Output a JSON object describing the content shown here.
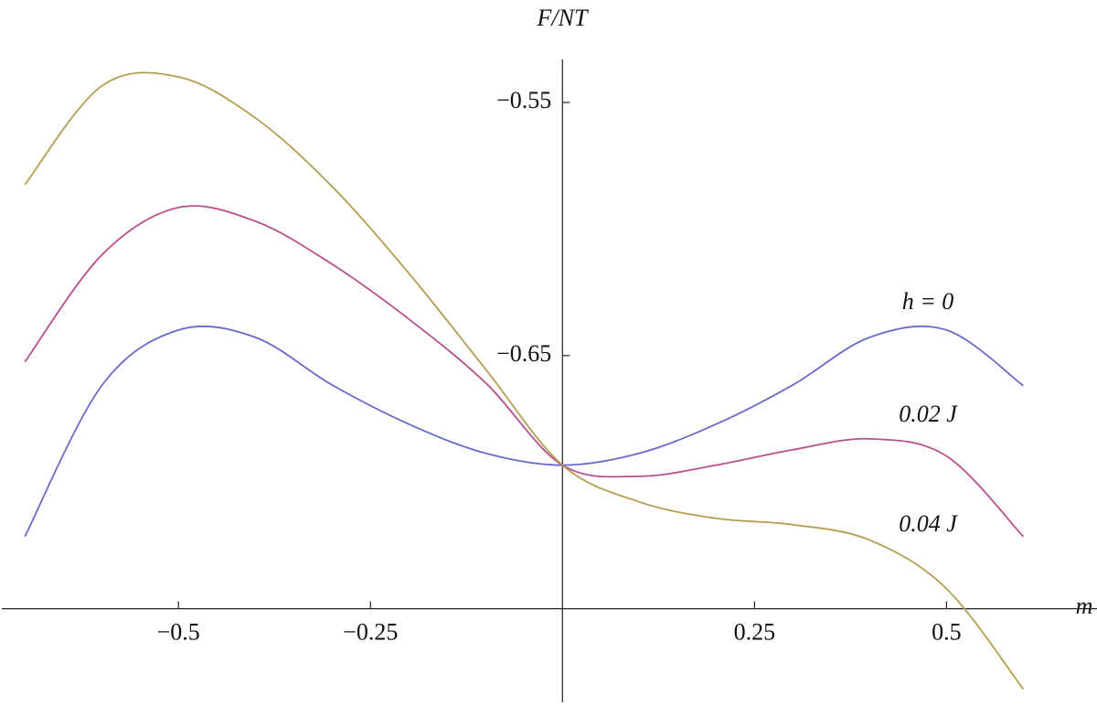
{
  "chart_data": {
    "type": "line",
    "y_label": "F/NT",
    "x_label": "m",
    "xlim": [
      -0.73,
      0.69
    ],
    "ylim": [
      -0.787,
      -0.533
    ],
    "origin": [
      0,
      -0.75
    ],
    "xticks": [
      {
        "value": -0.5,
        "label": "−0.5"
      },
      {
        "value": -0.25,
        "label": "−0.25"
      },
      0.25,
      0.5
    ],
    "yticks": [
      {
        "value": -0.55,
        "label": "−0.55"
      },
      {
        "value": -0.65,
        "label": "−0.65"
      }
    ],
    "x": [
      -0.7,
      -0.6,
      -0.5,
      -0.4,
      -0.3,
      -0.2,
      -0.1,
      0,
      0.1,
      0.2,
      0.3,
      0.4,
      0.5,
      0.6
    ],
    "series": [
      {
        "name": "h = 0",
        "color": "#6a6ac8",
        "values": [
          -0.7215,
          -0.6619,
          -0.6399,
          -0.6428,
          -0.6616,
          -0.6771,
          -0.6886,
          -0.6933,
          -0.6886,
          -0.6771,
          -0.6616,
          -0.6428,
          -0.6399,
          -0.6619
        ]
      },
      {
        "name": "0.02 J",
        "color": "#b8508c",
        "values": [
          -0.6525,
          -0.6103,
          -0.5915,
          -0.5969,
          -0.6139,
          -0.6356,
          -0.6608,
          -0.6933,
          -0.6977,
          -0.6933,
          -0.6872,
          -0.6829,
          -0.6897,
          -0.7215
        ]
      },
      {
        "name": "0.04 J",
        "color": "#b39e52",
        "values": [
          -0.5825,
          -0.5435,
          -0.5399,
          -0.5561,
          -0.5832,
          -0.6175,
          -0.6554,
          -0.6933,
          -0.7078,
          -0.7143,
          -0.7168,
          -0.7229,
          -0.7421,
          -0.7818
        ]
      }
    ]
  }
}
